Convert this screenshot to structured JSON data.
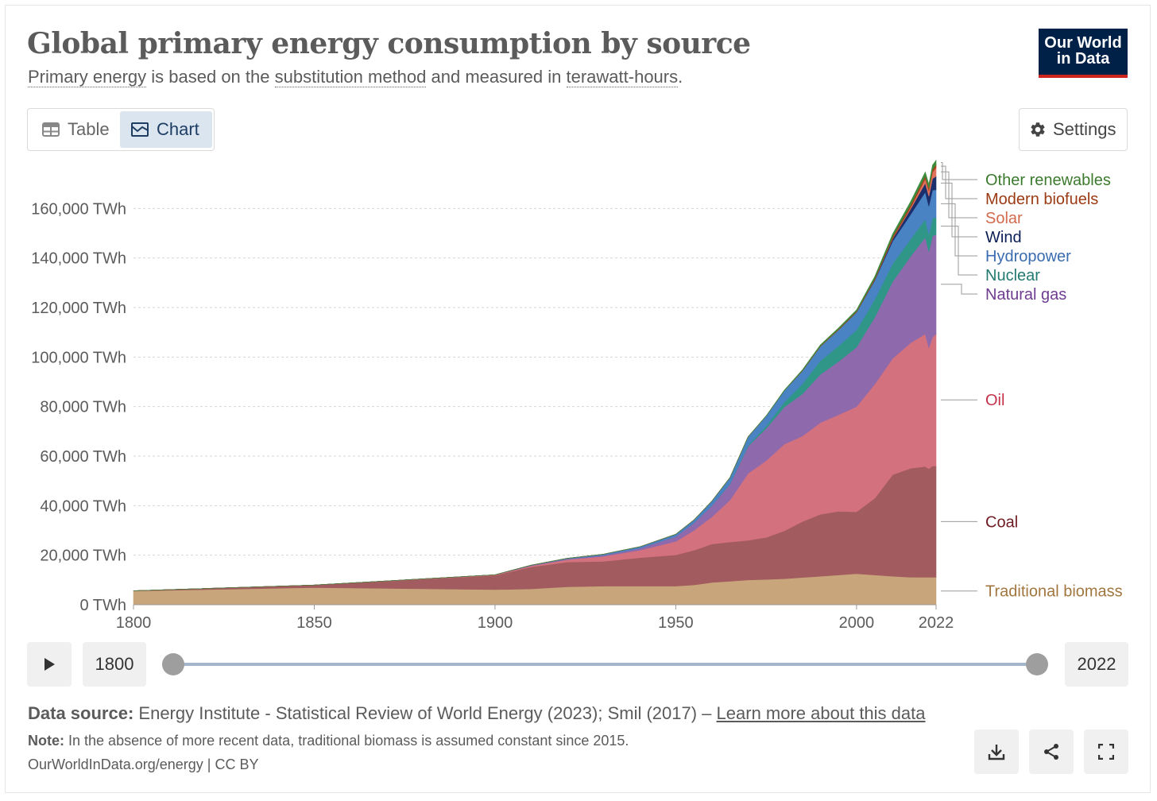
{
  "header": {
    "title": "Global primary energy consumption by source",
    "subtitle": {
      "term1": "Primary energy",
      "text1": " is based on the ",
      "term2": "substitution method",
      "text2": " and measured in ",
      "term3": "terawatt-hours",
      "text3": "."
    },
    "logo_line1": "Our World",
    "logo_line2": "in Data"
  },
  "tabs": {
    "table": "Table",
    "chart": "Chart",
    "active": "chart"
  },
  "settings_label": "Settings",
  "colors": {
    "brand_navy": "#002147",
    "brand_red": "#ce261e",
    "active_tab_bg": "#dbe5f0"
  },
  "timeline": {
    "start_label": "1800",
    "end_label": "2022"
  },
  "footer": {
    "source_label": "Data source:",
    "source_text": "Energy Institute - Statistical Review of World Energy (2023); Smil (2017) – ",
    "source_link": "Learn more about this data",
    "note_label": "Note:",
    "note_text": "In the absence of more recent data, traditional biomass is assumed constant since 2015.",
    "credit": "OurWorldInData.org/energy | CC BY"
  },
  "icons": {
    "table_tab": "table-icon",
    "chart_tab": "chart-icon",
    "settings": "gear-icon",
    "play": "play-icon",
    "download": "download-icon",
    "share": "share-icon",
    "fullscreen": "fullscreen-icon"
  },
  "chart_data": {
    "type": "area",
    "stacked": true,
    "unit": "TWh",
    "x": [
      1800,
      1850,
      1900,
      1910,
      1920,
      1930,
      1940,
      1950,
      1955,
      1960,
      1965,
      1970,
      1975,
      1980,
      1985,
      1990,
      1995,
      2000,
      2005,
      2010,
      2015,
      2019,
      2020,
      2021,
      2022
    ],
    "ylim": [
      0,
      180000
    ],
    "yticks": [
      0,
      20000,
      40000,
      60000,
      80000,
      100000,
      120000,
      140000,
      160000
    ],
    "ytick_labels": [
      "0 TWh",
      "20,000 TWh",
      "40,000 TWh",
      "60,000 TWh",
      "80,000 TWh",
      "100,000 TWh",
      "120,000 TWh",
      "140,000 TWh",
      "160,000 TWh"
    ],
    "xticks": [
      1800,
      1850,
      1900,
      1950,
      2000,
      2022
    ],
    "xtick_labels": [
      "1800",
      "1850",
      "1900",
      "1950",
      "2000",
      "2022"
    ],
    "grid": "horizontal dashed",
    "legend": "inline-right",
    "series": [
      {
        "name": "Traditional biomass",
        "color": "#c9a57b",
        "label_color": "#a2763f",
        "values": [
          5556,
          6944,
          6111,
          6389,
          7222,
          7500,
          7500,
          7500,
          8000,
          9000,
          9500,
          10000,
          10200,
          10500,
          11000,
          11500,
          12000,
          12500,
          12000,
          11500,
          11111,
          11111,
          11111,
          11111,
          11111
        ]
      },
      {
        "name": "Coal",
        "color": "#a25c5f",
        "label_color": "#6e1c22",
        "values": [
          97,
          1000,
          5728,
          8889,
          10000,
          10000,
          11500,
          12603,
          14000,
          15500,
          15800,
          16000,
          17000,
          19300,
          22600,
          25000,
          25700,
          25000,
          31000,
          41000,
          44000,
          44700,
          43800,
          44900,
          44900
        ]
      },
      {
        "name": "Oil",
        "color": "#d4717f",
        "label_color": "#c4334a",
        "values": [
          0,
          0,
          200,
          400,
          1000,
          2000,
          3000,
          5444,
          8000,
          11000,
          17000,
          27000,
          31000,
          35000,
          34500,
          37000,
          39000,
          42500,
          46000,
          47000,
          50700,
          53500,
          48900,
          51900,
          53400
        ]
      },
      {
        "name": "Natural gas",
        "color": "#8e6aac",
        "label_color": "#6e3c91",
        "values": [
          0,
          0,
          60,
          200,
          300,
          500,
          800,
          2000,
          3000,
          4500,
          6500,
          11000,
          13000,
          15000,
          17000,
          19500,
          21500,
          24000,
          27000,
          31000,
          35000,
          39000,
          38700,
          41000,
          40000
        ]
      },
      {
        "name": "Nuclear",
        "color": "#2f9688",
        "label_color": "#227a70",
        "values": [
          0,
          0,
          0,
          0,
          0,
          0,
          0,
          0,
          0,
          50,
          200,
          400,
          1000,
          2000,
          4000,
          5500,
          6300,
          6900,
          7200,
          7200,
          6900,
          7300,
          7000,
          7300,
          6900
        ]
      },
      {
        "name": "Hydropower",
        "color": "#4a83c4",
        "label_color": "#3a6cb0",
        "values": [
          0,
          0,
          0,
          100,
          200,
          400,
          600,
          900,
          1200,
          1800,
          2400,
          3400,
          4000,
          4600,
          5300,
          5800,
          6500,
          7200,
          7700,
          9100,
          10000,
          11000,
          11400,
          11200,
          11200
        ]
      },
      {
        "name": "Wind",
        "color": "#1a2f6b",
        "label_color": "#0c1e56",
        "values": [
          0,
          0,
          0,
          0,
          0,
          0,
          0,
          0,
          0,
          0,
          0,
          0,
          0,
          0,
          0,
          10,
          20,
          80,
          270,
          900,
          2200,
          3600,
          4000,
          4600,
          5500
        ]
      },
      {
        "name": "Solar",
        "color": "#e0715c",
        "label_color": "#d26a4c",
        "values": [
          0,
          0,
          0,
          0,
          0,
          0,
          0,
          0,
          0,
          0,
          0,
          0,
          0,
          0,
          0,
          0,
          0,
          1,
          10,
          80,
          650,
          1800,
          2200,
          2700,
          3500
        ]
      },
      {
        "name": "Modern biofuels",
        "color": "#a24419",
        "label_color": "#9b3a12",
        "values": [
          0,
          0,
          0,
          0,
          0,
          0,
          0,
          0,
          0,
          0,
          0,
          0,
          0,
          0,
          150,
          200,
          250,
          300,
          500,
          900,
          1000,
          1100,
          1050,
          1100,
          1150
        ]
      },
      {
        "name": "Other renewables",
        "color": "#3d8b3d",
        "label_color": "#3c7a2e",
        "values": [
          0,
          0,
          0,
          0,
          0,
          0,
          0,
          0,
          0,
          0,
          0,
          0,
          100,
          200,
          300,
          400,
          500,
          600,
          800,
          1100,
          1400,
          1600,
          1650,
          1700,
          1750
        ]
      }
    ]
  }
}
